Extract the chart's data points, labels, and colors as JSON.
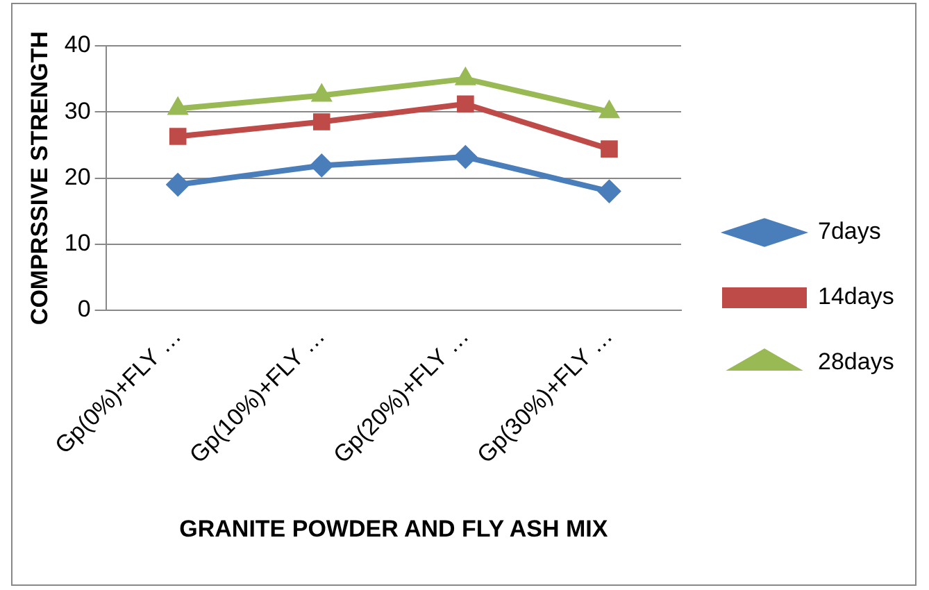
{
  "chart_data": {
    "type": "line",
    "xlabel": "GRANITE POWDER AND FLY ASH MIX",
    "ylabel": "COMPRSSIVE STRENGTH",
    "categories": [
      "Gp(0%)+FLY …",
      "Gp(10%)+FLY …",
      "Gp(20%)+FLY …",
      "Gp(30%)+FLY …"
    ],
    "series": [
      {
        "name": "7days",
        "color": "#4a7ebb",
        "marker": "diamond",
        "values": [
          19,
          21.9,
          23.2,
          18
        ]
      },
      {
        "name": "14days",
        "color": "#be4b48",
        "marker": "square",
        "values": [
          26.3,
          28.5,
          31.2,
          24.4
        ]
      },
      {
        "name": "28days",
        "color": "#98b954",
        "marker": "triangle",
        "values": [
          30.5,
          32.5,
          35,
          30
        ]
      }
    ],
    "ylim": [
      0,
      40
    ],
    "yticks": [
      0,
      10,
      20,
      30,
      40
    ],
    "grid": "y",
    "legend": "right"
  }
}
